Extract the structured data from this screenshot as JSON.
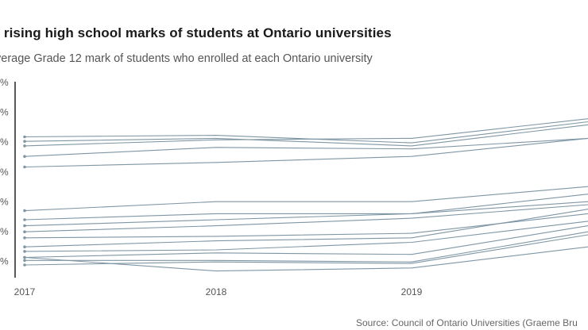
{
  "header": {
    "title": "he rising high school marks of students at Ontario universities",
    "subtitle": "verage Grade 12 mark of students who enrolled at each Ontario university",
    "source": "Source: Council of Ontario Universities (Graeme Bru"
  },
  "chart_data": {
    "type": "line",
    "title": "he rising high school marks of students at Ontario universities",
    "subtitle": "verage Grade 12 mark of students who enrolled at each Ontario university",
    "xlabel": "",
    "ylabel": "",
    "categories": [
      "2017",
      "2018",
      "2019",
      ""
    ],
    "y_tick_labels": [
      "%",
      "%",
      "%",
      "%",
      "%",
      "%",
      "%"
    ],
    "ylim": [
      0,
      100
    ],
    "line_color": "#7f96a4",
    "grid": false,
    "series": [
      {
        "values": [
          86.5,
          86.6,
          86.1,
          87.5
        ]
      },
      {
        "values": [
          86.2,
          86.4,
          85.9,
          87.3
        ]
      },
      {
        "values": [
          85.9,
          86.3,
          86.4,
          87.7
        ]
      },
      {
        "values": [
          85.2,
          85.8,
          85.7,
          86.4
        ]
      },
      {
        "values": [
          84.5,
          84.8,
          85.2,
          86.4
        ]
      },
      {
        "values": [
          81.6,
          82.2,
          82.2,
          83.2
        ]
      },
      {
        "values": [
          81.0,
          81.4,
          81.4,
          82.2
        ]
      },
      {
        "values": [
          80.6,
          81.0,
          81.4,
          82.7
        ]
      },
      {
        "values": [
          80.2,
          80.6,
          81.1,
          82.0
        ]
      },
      {
        "values": [
          79.8,
          79.9,
          80.1,
          81.4
        ]
      },
      {
        "values": [
          79.2,
          79.6,
          79.8,
          81.7
        ]
      },
      {
        "values": [
          78.9,
          79.0,
          79.5,
          80.9
        ]
      },
      {
        "values": [
          78.5,
          78.8,
          78.7,
          80.6
        ]
      },
      {
        "values": [
          78.3,
          78.3,
          78.2,
          80.2
        ]
      },
      {
        "values": [
          78.0,
          78.2,
          78.1,
          80.0
        ]
      },
      {
        "values": [
          78.5,
          77.6,
          77.8,
          79.2
        ]
      }
    ]
  }
}
